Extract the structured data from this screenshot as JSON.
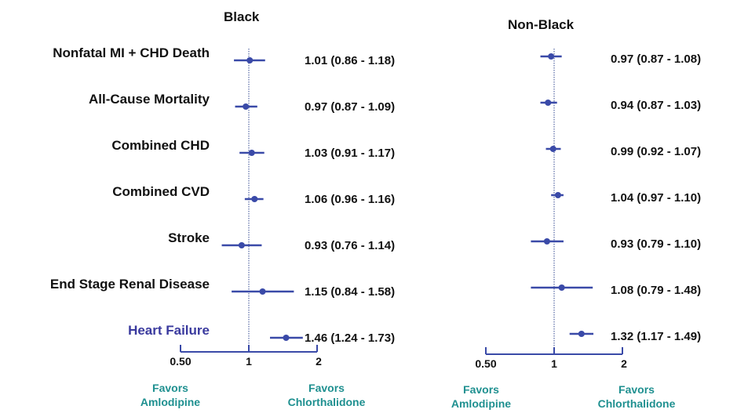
{
  "chart_data": {
    "type": "forest",
    "panels": [
      {
        "title": "Black",
        "estimates": [
          1.01,
          0.97,
          1.03,
          1.06,
          0.93,
          1.15,
          1.46
        ],
        "ci": [
          [
            0.86,
            1.18
          ],
          [
            0.87,
            1.09
          ],
          [
            0.91,
            1.17
          ],
          [
            0.96,
            1.16
          ],
          [
            0.76,
            1.14
          ],
          [
            0.84,
            1.58
          ],
          [
            1.24,
            1.73
          ]
        ],
        "labels": [
          "1.01  (0.86 - 1.18)",
          "0.97  (0.87 - 1.09)",
          "1.03  (0.91 - 1.17)",
          "1.06  (0.96 - 1.16)",
          "0.93  (0.76 - 1.14)",
          "1.15  (0.84 - 1.58)",
          "1.46  (1.24 - 1.73)"
        ]
      },
      {
        "title": "Non-Black",
        "estimates": [
          0.97,
          0.94,
          0.99,
          1.04,
          0.93,
          1.08,
          1.32
        ],
        "ci": [
          [
            0.87,
            1.08
          ],
          [
            0.87,
            1.03
          ],
          [
            0.92,
            1.07
          ],
          [
            0.97,
            1.1
          ],
          [
            0.79,
            1.1
          ],
          [
            0.79,
            1.48
          ],
          [
            1.17,
            1.49
          ]
        ],
        "labels": [
          "0.97  (0.87 - 1.08)",
          "0.94  (0.87 - 1.03)",
          "0.99  (0.92 - 1.07)",
          "1.04  (0.97 - 1.10)",
          "0.93  (0.79 - 1.10)",
          "1.08  (0.79 - 1.48)",
          "1.32  (1.17 - 1.49)"
        ]
      }
    ],
    "outcomes": [
      "Nonfatal MI + CHD Death",
      "All-Cause Mortality",
      "Combined CHD",
      "Combined CVD",
      "Stroke",
      "End Stage Renal Disease",
      "Heart Failure"
    ],
    "highlighted_outcome": "Heart Failure",
    "x_scale": "log",
    "xlim": [
      0.5,
      2
    ],
    "x_ticks": [
      0.5,
      1,
      2
    ],
    "x_tick_labels": [
      "0.50",
      "1",
      "2"
    ],
    "reference_line": 1,
    "favors_left": [
      "Favors",
      "Amlodipine"
    ],
    "favors_right": [
      "Favors",
      "Chlorthalidone"
    ]
  },
  "colors": {
    "marker": "#3a4aa8",
    "highlight_label": "#3a3a9e",
    "favors_text": "#1f9090",
    "reference_line": "#9aa4c8"
  }
}
